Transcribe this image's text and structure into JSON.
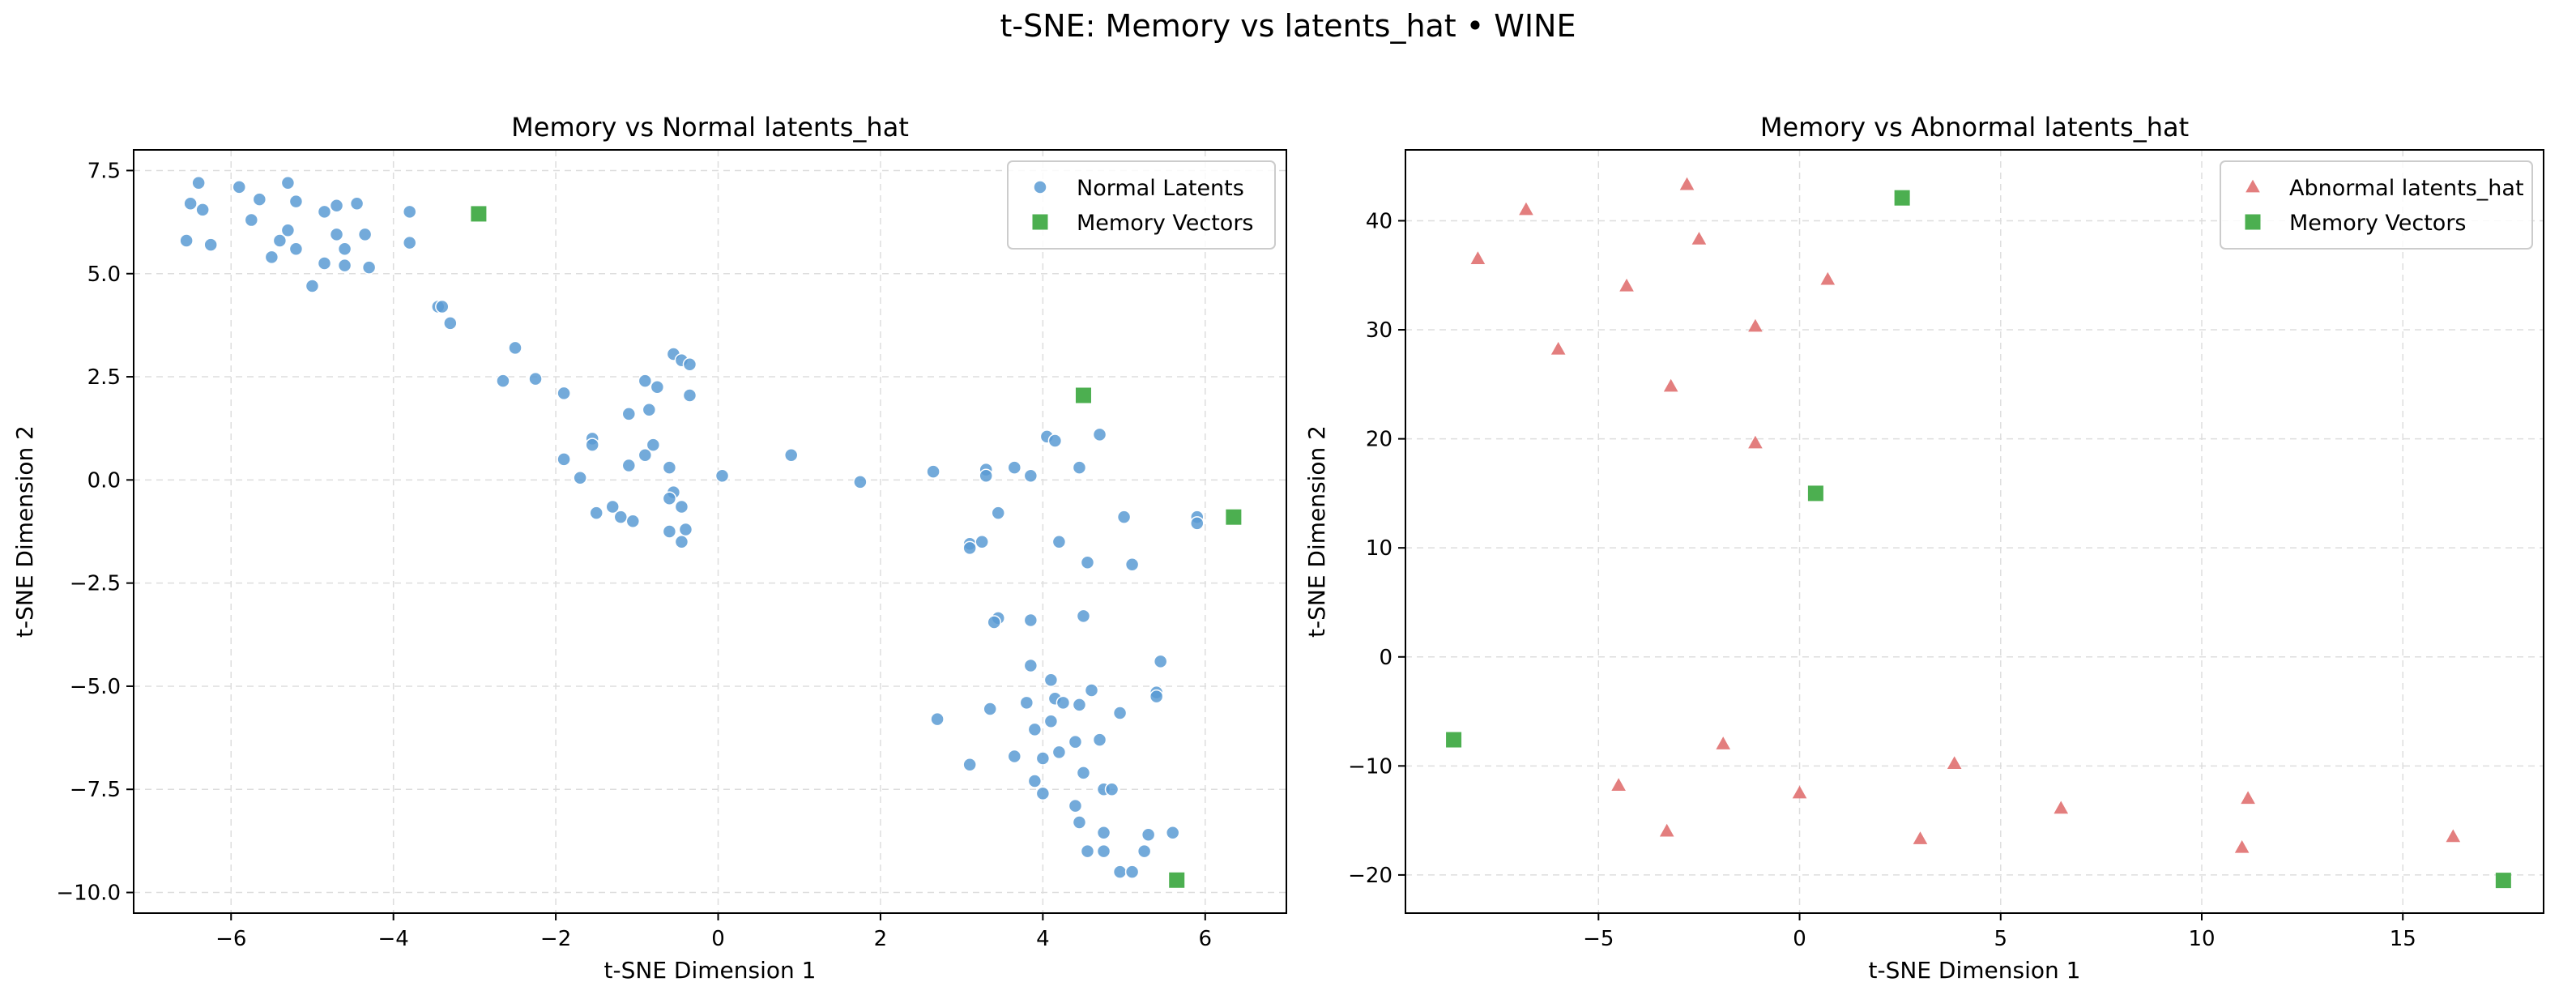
{
  "suptitle": "t-SNE: Memory vs latents_hat • WINE",
  "colors": {
    "normal": "#5a9bd3",
    "abnormal": "#e07070",
    "memory": "#4caf50"
  },
  "chart_data": [
    {
      "type": "scatter",
      "title": "Memory vs Normal latents_hat",
      "xlabel": "t-SNE Dimension 1",
      "ylabel": "t-SNE Dimension 2",
      "xlim": [
        -7.2,
        7.0
      ],
      "ylim": [
        -10.5,
        8.0
      ],
      "xticks": [
        -6,
        -4,
        -2,
        0,
        2,
        4,
        6
      ],
      "yticks": [
        -10.0,
        -7.5,
        -5.0,
        -2.5,
        0.0,
        2.5,
        5.0,
        7.5
      ],
      "ytick_labels": [
        "−10.0",
        "−7.5",
        "−5.0",
        "−2.5",
        "0.0",
        "2.5",
        "5.0",
        "7.5"
      ],
      "xtick_labels": [
        "−6",
        "−4",
        "−2",
        "0",
        "2",
        "4",
        "6"
      ],
      "grid": true,
      "legend": "top-right",
      "series": [
        {
          "name": "Normal Latents",
          "marker": "circle",
          "points": [
            [
              -6.5,
              6.7
            ],
            [
              -6.4,
              7.2
            ],
            [
              -6.35,
              6.55
            ],
            [
              -6.55,
              5.8
            ],
            [
              -6.25,
              5.7
            ],
            [
              -5.9,
              7.1
            ],
            [
              -5.65,
              6.8
            ],
            [
              -5.75,
              6.3
            ],
            [
              -5.3,
              7.2
            ],
            [
              -5.2,
              6.75
            ],
            [
              -4.85,
              6.5
            ],
            [
              -5.4,
              5.8
            ],
            [
              -5.3,
              6.05
            ],
            [
              -5.5,
              5.4
            ],
            [
              -5.2,
              5.6
            ],
            [
              -4.7,
              6.65
            ],
            [
              -4.45,
              6.7
            ],
            [
              -4.7,
              5.95
            ],
            [
              -4.6,
              5.6
            ],
            [
              -4.35,
              5.95
            ],
            [
              -4.85,
              5.25
            ],
            [
              -4.6,
              5.2
            ],
            [
              -4.3,
              5.15
            ],
            [
              -5.0,
              4.7
            ],
            [
              -3.8,
              6.5
            ],
            [
              -3.8,
              5.75
            ],
            [
              -3.45,
              4.2
            ],
            [
              -3.4,
              4.2
            ],
            [
              -3.3,
              3.8
            ],
            [
              -2.5,
              3.2
            ],
            [
              -2.65,
              2.4
            ],
            [
              -2.25,
              2.45
            ],
            [
              -1.9,
              2.1
            ],
            [
              -0.55,
              3.05
            ],
            [
              -0.45,
              2.9
            ],
            [
              -0.35,
              2.8
            ],
            [
              -0.9,
              2.4
            ],
            [
              -0.75,
              2.25
            ],
            [
              -0.35,
              2.05
            ],
            [
              -1.1,
              1.6
            ],
            [
              -0.85,
              1.7
            ],
            [
              -1.55,
              1.0
            ],
            [
              -1.55,
              0.85
            ],
            [
              -1.9,
              0.5
            ],
            [
              -0.8,
              0.85
            ],
            [
              -1.1,
              0.35
            ],
            [
              -0.9,
              0.6
            ],
            [
              -0.6,
              0.3
            ],
            [
              -1.7,
              0.05
            ],
            [
              -1.5,
              -0.8
            ],
            [
              -1.3,
              -0.65
            ],
            [
              -1.2,
              -0.9
            ],
            [
              -1.05,
              -1.0
            ],
            [
              -0.55,
              -0.3
            ],
            [
              -0.6,
              -0.45
            ],
            [
              -0.45,
              -0.65
            ],
            [
              -0.6,
              -1.25
            ],
            [
              -0.4,
              -1.2
            ],
            [
              -0.45,
              -1.5
            ],
            [
              0.05,
              0.1
            ],
            [
              0.9,
              0.6
            ],
            [
              1.75,
              -0.05
            ],
            [
              2.65,
              0.2
            ],
            [
              3.3,
              0.25
            ],
            [
              3.3,
              0.1
            ],
            [
              3.65,
              0.3
            ],
            [
              3.85,
              0.1
            ],
            [
              4.05,
              1.05
            ],
            [
              4.15,
              0.95
            ],
            [
              4.7,
              1.1
            ],
            [
              4.45,
              0.3
            ],
            [
              3.1,
              -1.55
            ],
            [
              3.25,
              -1.5
            ],
            [
              3.1,
              -1.65
            ],
            [
              3.45,
              -0.8
            ],
            [
              4.2,
              -1.5
            ],
            [
              4.55,
              -2.0
            ],
            [
              5.0,
              -0.9
            ],
            [
              5.1,
              -2.05
            ],
            [
              5.9,
              -0.9
            ],
            [
              5.9,
              -1.05
            ],
            [
              3.45,
              -3.35
            ],
            [
              3.4,
              -3.45
            ],
            [
              3.85,
              -3.4
            ],
            [
              4.5,
              -3.3
            ],
            [
              5.45,
              -4.4
            ],
            [
              3.85,
              -4.5
            ],
            [
              4.1,
              -4.85
            ],
            [
              4.6,
              -5.1
            ],
            [
              5.4,
              -5.15
            ],
            [
              5.4,
              -5.25
            ],
            [
              4.15,
              -5.3
            ],
            [
              4.25,
              -5.4
            ],
            [
              4.45,
              -5.45
            ],
            [
              3.35,
              -5.55
            ],
            [
              3.8,
              -5.4
            ],
            [
              4.1,
              -5.85
            ],
            [
              3.9,
              -6.05
            ],
            [
              4.95,
              -5.65
            ],
            [
              4.4,
              -6.35
            ],
            [
              4.7,
              -6.3
            ],
            [
              4.2,
              -6.6
            ],
            [
              3.65,
              -6.7
            ],
            [
              4.0,
              -6.75
            ],
            [
              4.5,
              -7.1
            ],
            [
              3.1,
              -6.9
            ],
            [
              3.9,
              -7.3
            ],
            [
              4.0,
              -7.6
            ],
            [
              4.75,
              -7.5
            ],
            [
              4.85,
              -7.5
            ],
            [
              4.4,
              -7.9
            ],
            [
              4.45,
              -8.3
            ],
            [
              4.75,
              -8.55
            ],
            [
              5.3,
              -8.6
            ],
            [
              5.6,
              -8.55
            ],
            [
              4.55,
              -9.0
            ],
            [
              4.75,
              -9.0
            ],
            [
              5.25,
              -9.0
            ],
            [
              4.95,
              -9.5
            ],
            [
              5.1,
              -9.5
            ],
            [
              2.7,
              -5.8
            ]
          ]
        },
        {
          "name": "Memory Vectors",
          "marker": "square",
          "points": [
            [
              -2.95,
              6.45
            ],
            [
              4.5,
              2.05
            ],
            [
              6.35,
              -0.9
            ],
            [
              5.65,
              -9.7
            ]
          ]
        }
      ]
    },
    {
      "type": "scatter",
      "title": "Memory vs Abnormal latents_hat",
      "xlabel": "t-SNE Dimension 1",
      "ylabel": "t-SNE Dimension 2",
      "xlim": [
        -9.8,
        18.5
      ],
      "ylim": [
        -23.5,
        46.5
      ],
      "xticks": [
        -5,
        0,
        5,
        10,
        15
      ],
      "yticks": [
        -20,
        -10,
        0,
        10,
        20,
        30,
        40
      ],
      "xtick_labels": [
        "−5",
        "0",
        "5",
        "10",
        "15"
      ],
      "ytick_labels": [
        "−20",
        "−10",
        "0",
        "10",
        "20",
        "30",
        "40"
      ],
      "grid": true,
      "legend": "top-right",
      "series": [
        {
          "name": "Abnormal latents_hat",
          "marker": "triangle",
          "points": [
            [
              -8.0,
              36.5
            ],
            [
              -6.8,
              41.0
            ],
            [
              -4.3,
              34.0
            ],
            [
              -2.8,
              43.3
            ],
            [
              -2.5,
              38.3
            ],
            [
              0.7,
              34.6
            ],
            [
              -6.0,
              28.2
            ],
            [
              -1.1,
              30.3
            ],
            [
              -3.2,
              24.8
            ],
            [
              -1.1,
              19.6
            ],
            [
              -4.5,
              -11.8
            ],
            [
              -1.9,
              -8.0
            ],
            [
              3.85,
              -9.8
            ],
            [
              -3.3,
              -16.0
            ],
            [
              0.0,
              -12.5
            ],
            [
              3.0,
              -16.7
            ],
            [
              6.5,
              -13.9
            ],
            [
              11.15,
              -13.0
            ],
            [
              11.0,
              -17.5
            ],
            [
              16.25,
              -16.5
            ]
          ]
        },
        {
          "name": "Memory Vectors",
          "marker": "square",
          "points": [
            [
              2.55,
              42.1
            ],
            [
              0.4,
              15.0
            ],
            [
              -8.6,
              -7.6
            ],
            [
              17.5,
              -20.5
            ]
          ]
        }
      ]
    }
  ]
}
